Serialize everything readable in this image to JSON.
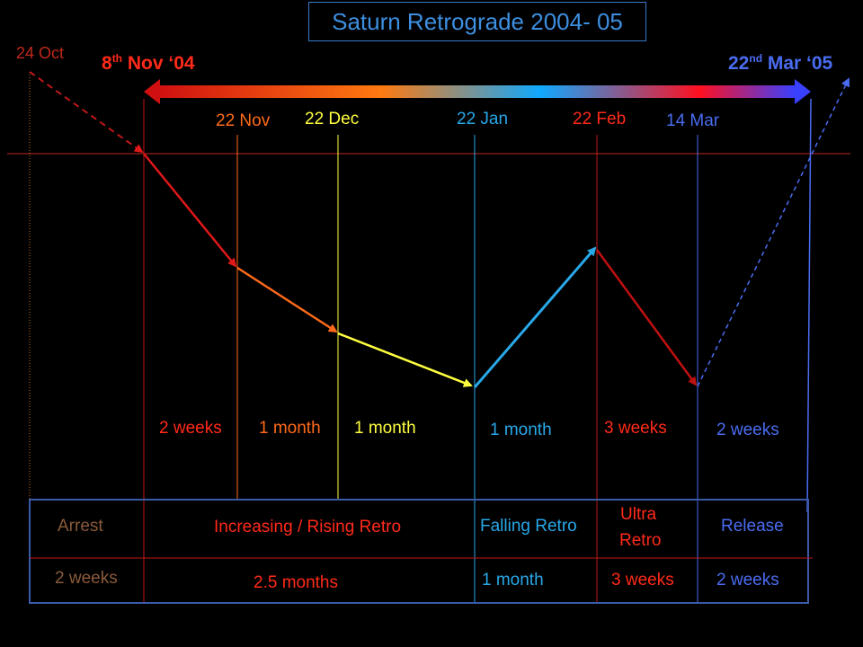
{
  "title": "Saturn Retrograde 2004- 05",
  "start": {
    "prefix": "8",
    "sup": "th",
    "suffix": " Nov ‘04",
    "color": "#ff2a1a"
  },
  "end": {
    "prefix": "22",
    "sup": "nd",
    "suffix": " Mar ‘05",
    "color": "#4a6cf0"
  },
  "entry_date": {
    "text": "24 Oct",
    "color": "#c0281a"
  },
  "dates": [
    {
      "text": "22 Nov",
      "color": "#ff6a1a"
    },
    {
      "text": "22 Dec",
      "color": "#ffff40"
    },
    {
      "text": "22 Jan",
      "color": "#29a8e8"
    },
    {
      "text": "22 Feb",
      "color": "#ff2a1a"
    },
    {
      "text": "14 Mar",
      "color": "#4a6cf0"
    }
  ],
  "segment_durations": [
    {
      "text": "2 weeks",
      "color": "#ff2a1a"
    },
    {
      "text": "1 month",
      "color": "#ff6a1a"
    },
    {
      "text": "1 month",
      "color": "#ffff40"
    },
    {
      "text": "1 month",
      "color": "#29a8e8"
    },
    {
      "text": "3 weeks",
      "color": "#ff2a1a"
    },
    {
      "text": "2 weeks",
      "color": "#4a6cf0"
    }
  ],
  "phases": [
    {
      "name": "Arrest",
      "duration": "2 weeks",
      "color": "#8a5a3a"
    },
    {
      "name": "Increasing / Rising Retro",
      "duration": "2.5 months",
      "color": "#ff2a1a"
    },
    {
      "name": "Falling Retro",
      "duration": "1 month",
      "color": "#29a8e8"
    },
    {
      "name": "Ultra\nRetro",
      "name_line1": "Ultra",
      "name_line2": "Retro",
      "duration": "3 weeks",
      "color": "#ff2a1a"
    },
    {
      "name": "Release",
      "duration": "2 weeks",
      "color": "#4a6cf0"
    }
  ],
  "colors": {
    "background": "#000000",
    "title_border": "#3a7ac8",
    "title_text": "#3d8fe0",
    "horizon_line": "#c0281a",
    "table_border": "#3a5aa8"
  }
}
